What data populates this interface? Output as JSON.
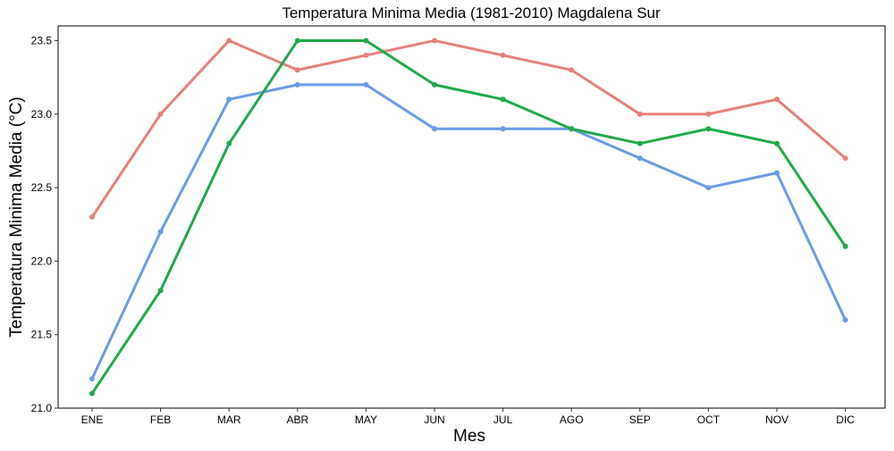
{
  "chart_data": {
    "type": "line",
    "title": "Temperatura Minima Media (1981-2010)  Magdalena Sur",
    "xlabel": "Mes",
    "ylabel": "Temperatura Minima Media  (°C)",
    "categories": [
      "ENE",
      "FEB",
      "MAR",
      "ABR",
      "MAY",
      "JUN",
      "JUL",
      "AGO",
      "SEP",
      "OCT",
      "NOV",
      "DIC"
    ],
    "ylim": [
      21.0,
      23.6
    ],
    "yticks": [
      "21.0",
      "21.5",
      "22.0",
      "22.5",
      "23.0",
      "23.5"
    ],
    "ytick_values": [
      21.0,
      21.5,
      22.0,
      22.5,
      23.0,
      23.5
    ],
    "grid": false,
    "legend": "none",
    "series": [
      {
        "color": "#E8807A",
        "values": [
          22.3,
          23.0,
          23.5,
          23.3,
          23.4,
          23.5,
          23.4,
          23.3,
          23.0,
          23.0,
          23.1,
          22.7
        ]
      },
      {
        "color": "#6A9BE6",
        "values": [
          21.2,
          22.2,
          23.1,
          23.2,
          23.2,
          22.9,
          22.9,
          22.9,
          22.7,
          22.5,
          22.6,
          21.6
        ]
      },
      {
        "color": "#1FAA4A",
        "values": [
          21.1,
          21.8,
          22.8,
          23.5,
          23.5,
          23.2,
          23.1,
          22.9,
          22.8,
          22.9,
          22.8,
          22.1
        ]
      }
    ]
  }
}
